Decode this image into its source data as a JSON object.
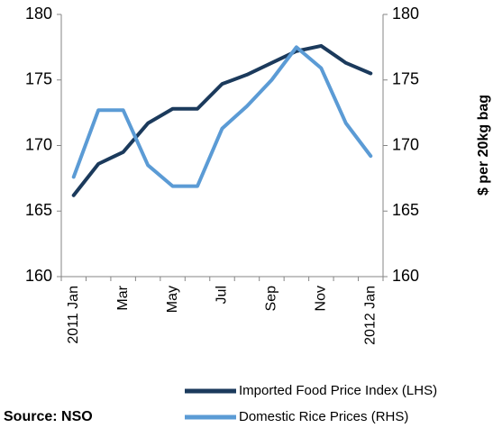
{
  "chart_data": {
    "type": "line",
    "categories": [
      "2011 Jan",
      null,
      "Mar",
      null,
      "May",
      null,
      "Jul",
      null,
      "Sep",
      null,
      "Nov",
      null,
      "2012 Jan"
    ],
    "series": [
      {
        "name": "Imported Food Price Index (LHS)",
        "color": "#1b3a5c",
        "values": [
          166.2,
          168.6,
          169.5,
          171.7,
          172.8,
          172.8,
          174.7,
          175.4,
          176.3,
          177.2,
          177.6,
          176.3,
          175.5
        ]
      },
      {
        "name": "Domestic Rice Prices (RHS)",
        "color": "#5b9bd5",
        "axis": "y2",
        "values": [
          167.6,
          172.7,
          172.7,
          168.5,
          166.9,
          166.9,
          171.3,
          173.0,
          175.0,
          177.5,
          175.9,
          171.7,
          169.2
        ]
      }
    ],
    "ylim": [
      160,
      180
    ],
    "yticks": [
      160,
      165,
      170,
      175,
      180
    ],
    "y2lim": [
      160,
      180
    ],
    "y2ticks": [
      160,
      165,
      170,
      175,
      180
    ],
    "y2label": "$ per 20kg bag",
    "source": "Source: NSO",
    "legend": "bottom-right",
    "grid": false
  }
}
